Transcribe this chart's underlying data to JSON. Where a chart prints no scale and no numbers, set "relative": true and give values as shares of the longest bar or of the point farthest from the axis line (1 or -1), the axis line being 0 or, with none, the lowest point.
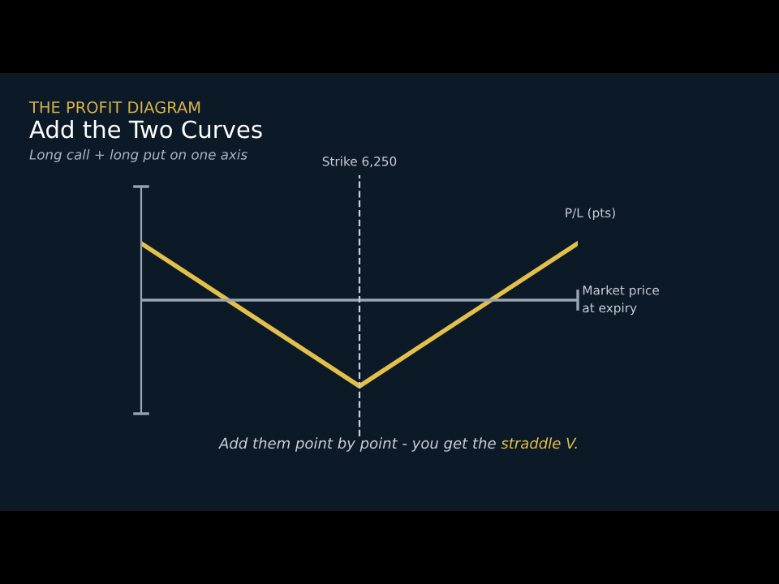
{
  "chart_data": {
    "type": "line",
    "title": "Add the Two Curves",
    "subtitle": "Long call + long put on one axis",
    "xlabel": "Market price\nat expiry",
    "ylabel": "P/L (pts)",
    "categories": [
      null,
      null,
      null
    ],
    "relative": true,
    "series": [
      {
        "color": "#e2c04a",
        "values": [
          0.66,
          -1,
          0.66
        ]
      }
    ],
    "annotations": [
      "THE PROFIT DIAGRAM",
      "Add them point by point - you get the ",
      "straddle V.",
      "Strike 6,250"
    ],
    "grid": false,
    "legend": false,
    "marker": "none",
    "line_style": "solid"
  }
}
